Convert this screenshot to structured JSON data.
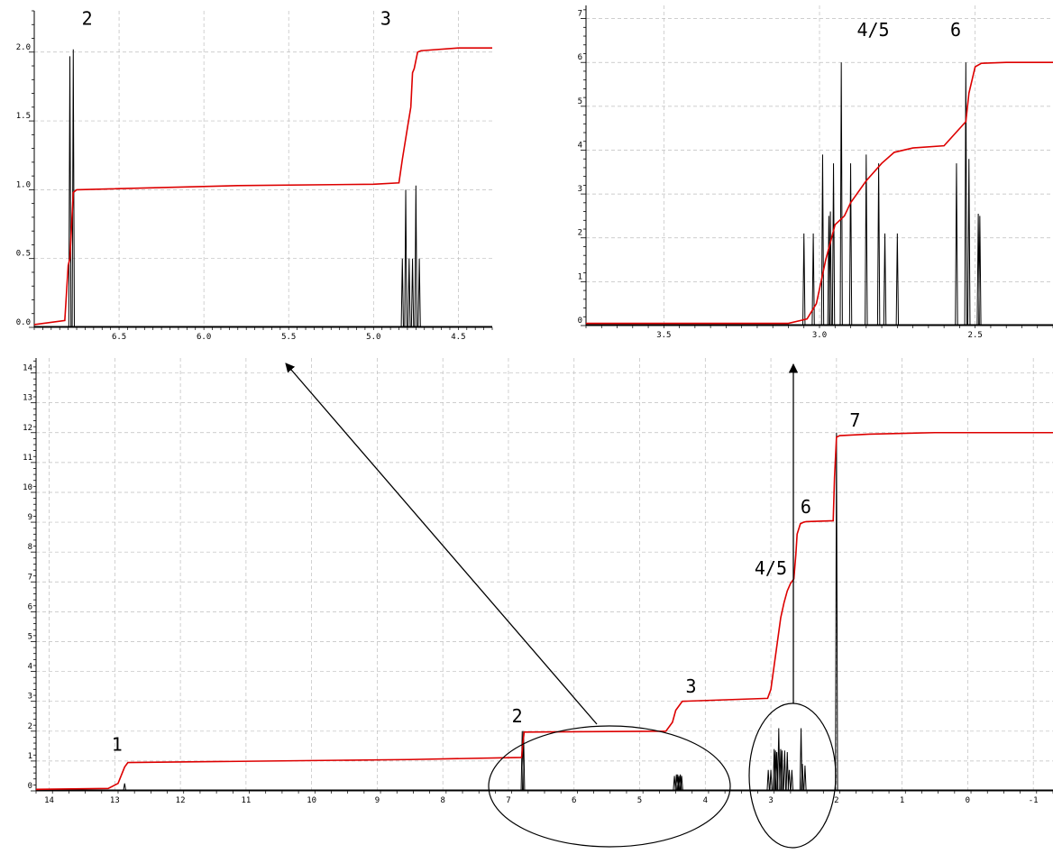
{
  "colors": {
    "spectrum": "#000000",
    "integral": "#dd0000",
    "grid": "#bdbdbd",
    "axis": "#000000"
  },
  "chart_data": [
    {
      "id": "main",
      "type": "line",
      "title": "",
      "xlabel": "",
      "ylabel": "",
      "xlim": [
        14.2,
        -1.3
      ],
      "ylim": [
        0,
        14.5
      ],
      "x_reversed": true,
      "grid": true,
      "x_ticks": [
        "14",
        "13",
        "12",
        "11",
        "10",
        "9",
        "8",
        "7",
        "6",
        "5",
        "4",
        "3",
        "2",
        "1",
        "0",
        "-1"
      ],
      "y_ticks": [
        "0",
        "1",
        "2",
        "3",
        "4",
        "5",
        "6",
        "7",
        "8",
        "9",
        "10",
        "11",
        "12",
        "13",
        "14"
      ],
      "series": [
        {
          "name": "",
          "role": "integral",
          "x": [
            14.2,
            13.1,
            12.95,
            12.85,
            12.8,
            8.5,
            6.8,
            6.78,
            6.76,
            4.6,
            4.5,
            4.45,
            4.35,
            3.05,
            3.0,
            2.95,
            2.9,
            2.85,
            2.8,
            2.75,
            2.7,
            2.65,
            2.62,
            2.6,
            2.55,
            2.5,
            2.46,
            2.05,
            2.03,
            2.0,
            1.95,
            1.5,
            0.5,
            -1.3
          ],
          "y": [
            0.05,
            0.08,
            0.25,
            0.8,
            0.95,
            1.05,
            1.12,
            1.6,
            1.97,
            2.0,
            2.3,
            2.7,
            3.0,
            3.1,
            3.4,
            4.2,
            5.0,
            5.8,
            6.3,
            6.7,
            6.95,
            7.1,
            7.9,
            8.6,
            8.95,
            9.0,
            9.02,
            9.05,
            10.5,
            11.85,
            11.9,
            11.95,
            12.0,
            12.0
          ]
        },
        {
          "name": "",
          "role": "spectrum",
          "peaks": [
            [
              12.85,
              0.25
            ],
            [
              6.79,
              2.0
            ],
            [
              6.77,
              2.0
            ],
            [
              4.47,
              0.5
            ],
            [
              4.44,
              0.55
            ],
            [
              4.42,
              0.55
            ],
            [
              4.4,
              0.5
            ],
            [
              4.38,
              0.55
            ],
            [
              4.36,
              0.5
            ],
            [
              3.04,
              0.7
            ],
            [
              3.0,
              0.7
            ],
            [
              2.95,
              1.4
            ],
            [
              2.93,
              1.35
            ],
            [
              2.91,
              1.3
            ],
            [
              2.88,
              2.1
            ],
            [
              2.85,
              1.4
            ],
            [
              2.83,
              1.35
            ],
            [
              2.79,
              1.35
            ],
            [
              2.75,
              1.3
            ],
            [
              2.72,
              0.7
            ],
            [
              2.68,
              0.7
            ],
            [
              2.54,
              2.1
            ],
            [
              2.52,
              0.9
            ],
            [
              2.48,
              0.85
            ],
            [
              2.0,
              12.0
            ]
          ]
        }
      ],
      "labels": [
        {
          "text": "1",
          "x": 13.05,
          "y": 1.35
        },
        {
          "text": "2",
          "x": 6.95,
          "y": 2.3
        },
        {
          "text": "3",
          "x": 4.3,
          "y": 3.3
        },
        {
          "text": "4/5",
          "x": 3.25,
          "y": 7.25
        },
        {
          "text": "6",
          "x": 2.55,
          "y": 9.3
        },
        {
          "text": "7",
          "x": 1.8,
          "y": 12.2
        }
      ]
    },
    {
      "id": "inset_left",
      "type": "line",
      "title": "",
      "xlim": [
        7.0,
        4.3
      ],
      "ylim": [
        0,
        2.3
      ],
      "x_reversed": true,
      "grid": true,
      "x_ticks": [
        "6.5",
        "6.0",
        "5.5",
        "5.0",
        "4.5"
      ],
      "y_ticks": [
        "0.0",
        "0.5",
        "1.0",
        "1.5",
        "2.0"
      ],
      "series": [
        {
          "name": "",
          "role": "integral",
          "x": [
            7.0,
            6.82,
            6.8,
            6.79,
            6.77,
            6.75,
            5.8,
            5.0,
            4.85,
            4.83,
            4.8,
            4.78,
            4.77,
            4.76,
            4.74,
            4.72,
            4.5,
            4.3
          ],
          "y": [
            0.02,
            0.05,
            0.45,
            0.5,
            0.98,
            1.0,
            1.03,
            1.04,
            1.05,
            1.22,
            1.45,
            1.6,
            1.85,
            1.88,
            2.0,
            2.01,
            2.03,
            2.03
          ]
        },
        {
          "name": "",
          "role": "spectrum",
          "peaks": [
            [
              6.79,
              1.97
            ],
            [
              6.77,
              2.02
            ],
            [
              4.83,
              0.5
            ],
            [
              4.81,
              1.0
            ],
            [
              4.79,
              0.5
            ],
            [
              4.77,
              0.5
            ],
            [
              4.75,
              1.03
            ],
            [
              4.73,
              0.5
            ]
          ]
        }
      ],
      "labels": [
        {
          "text": "2",
          "x": 6.72,
          "y": 2.2
        },
        {
          "text": "3",
          "x": 4.96,
          "y": 2.2
        }
      ]
    },
    {
      "id": "inset_right",
      "type": "line",
      "title": "",
      "xlim": [
        3.75,
        2.25
      ],
      "ylim": [
        0,
        7.3
      ],
      "x_reversed": true,
      "grid": true,
      "x_ticks": [
        "3.5",
        "3.0",
        "2.5"
      ],
      "y_ticks": [
        "0",
        "1",
        "2",
        "3",
        "4",
        "5",
        "6",
        "7"
      ],
      "series": [
        {
          "name": "",
          "role": "integral",
          "x": [
            3.75,
            3.1,
            3.04,
            3.01,
            2.98,
            2.95,
            2.92,
            2.9,
            2.85,
            2.8,
            2.76,
            2.7,
            2.6,
            2.53,
            2.52,
            2.51,
            2.5,
            2.48,
            2.4,
            2.25
          ],
          "y": [
            0.05,
            0.05,
            0.15,
            0.5,
            1.5,
            2.3,
            2.5,
            2.8,
            3.3,
            3.7,
            3.95,
            4.05,
            4.1,
            4.65,
            5.3,
            5.6,
            5.9,
            5.98,
            6.0,
            6.0
          ]
        },
        {
          "name": "",
          "role": "spectrum",
          "peaks": [
            [
              3.05,
              2.1
            ],
            [
              3.02,
              2.1
            ],
            [
              2.99,
              3.9
            ],
            [
              2.97,
              2.5
            ],
            [
              2.965,
              2.6
            ],
            [
              2.955,
              3.7
            ],
            [
              2.93,
              6.0
            ],
            [
              2.9,
              3.7
            ],
            [
              2.85,
              3.9
            ],
            [
              2.81,
              3.7
            ],
            [
              2.79,
              2.1
            ],
            [
              2.75,
              2.1
            ],
            [
              2.56,
              3.7
            ],
            [
              2.53,
              6.0
            ],
            [
              2.52,
              3.8
            ],
            [
              2.49,
              2.55
            ],
            [
              2.485,
              2.5
            ]
          ]
        }
      ],
      "labels": [
        {
          "text": "4/5",
          "x": 2.88,
          "y": 6.6
        },
        {
          "text": "6",
          "x": 2.58,
          "y": 6.6
        }
      ]
    }
  ]
}
